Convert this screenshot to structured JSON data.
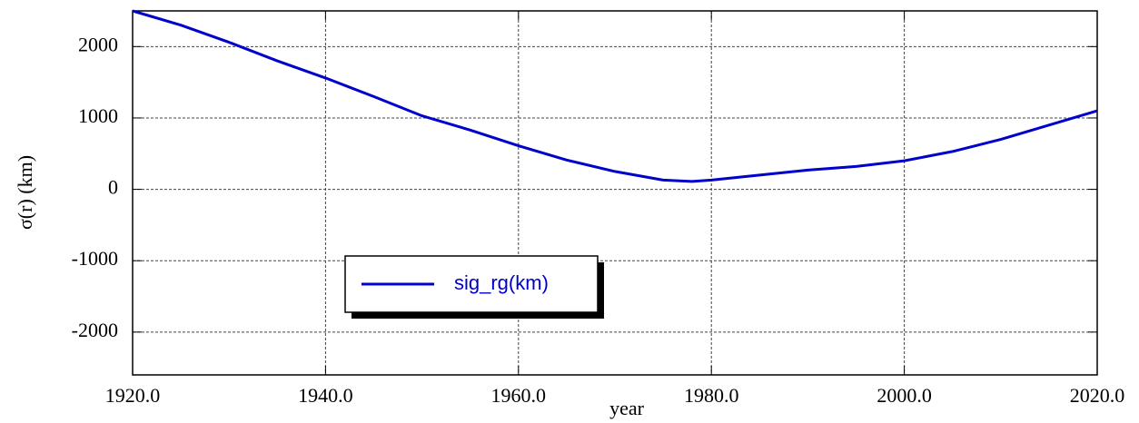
{
  "chart_data": {
    "type": "line",
    "xlabel": "year",
    "ylabel": "σ(r) (km)",
    "x": [
      1920,
      1925,
      1930,
      1935,
      1940,
      1945,
      1950,
      1955,
      1960,
      1965,
      1970,
      1975,
      1978,
      1980,
      1985,
      1990,
      1995,
      2000,
      2005,
      2010,
      2015,
      2020
    ],
    "series": [
      {
        "name": "sig_rg(km)",
        "color": "#0000cc",
        "values": [
          2500,
          2300,
          2060,
          1800,
          1560,
          1300,
          1030,
          830,
          610,
          410,
          250,
          130,
          110,
          130,
          200,
          270,
          320,
          400,
          530,
          700,
          900,
          1100
        ]
      }
    ],
    "xlim": [
      1920,
      2020
    ],
    "xticks": [
      {
        "value": 1920,
        "label": "1920.0"
      },
      {
        "value": 1940,
        "label": "1940.0"
      },
      {
        "value": 1960,
        "label": "1960.0"
      },
      {
        "value": 1980,
        "label": "1980.0"
      },
      {
        "value": 2000,
        "label": "2000.0"
      },
      {
        "value": 2020,
        "label": "2020.0"
      }
    ],
    "ylim": [
      -2600,
      2500
    ],
    "yticks": [
      -2000,
      -1000,
      0,
      1000,
      2000
    ],
    "grid": true,
    "legend": "lower-left"
  }
}
